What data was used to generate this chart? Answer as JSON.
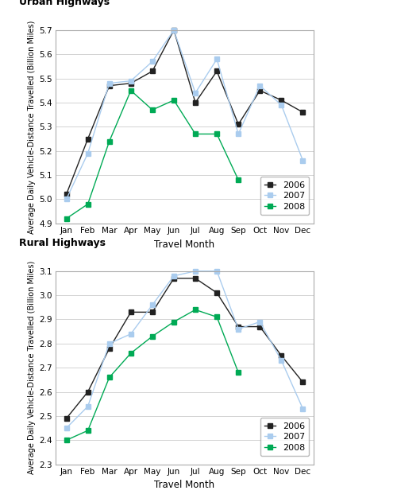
{
  "months": [
    "Jan",
    "Feb",
    "Mar",
    "Apr",
    "May",
    "Jun",
    "Jul",
    "Aug",
    "Sep",
    "Oct",
    "Nov",
    "Dec"
  ],
  "urban": {
    "2006": [
      5.02,
      5.25,
      5.47,
      5.48,
      5.53,
      5.7,
      5.4,
      5.53,
      5.31,
      5.45,
      5.41,
      5.36
    ],
    "2007": [
      5.0,
      5.19,
      5.48,
      5.49,
      5.57,
      5.7,
      5.44,
      5.58,
      5.27,
      5.47,
      5.39,
      5.16
    ],
    "2008": [
      4.92,
      4.98,
      5.24,
      5.45,
      5.37,
      5.41,
      5.27,
      5.27,
      5.08,
      null,
      null,
      null
    ]
  },
  "rural": {
    "2006": [
      2.49,
      2.6,
      2.78,
      2.93,
      2.93,
      3.07,
      3.07,
      3.01,
      2.87,
      2.87,
      2.75,
      2.64
    ],
    "2007": [
      2.45,
      2.54,
      2.8,
      2.84,
      2.96,
      3.08,
      3.1,
      3.1,
      2.86,
      2.89,
      2.73,
      2.53
    ],
    "2008": [
      2.4,
      2.44,
      2.66,
      2.76,
      2.83,
      2.89,
      2.94,
      2.91,
      2.68,
      null,
      null,
      null
    ]
  },
  "urban_ylim": [
    4.9,
    5.7
  ],
  "urban_yticks": [
    4.9,
    5.0,
    5.1,
    5.2,
    5.3,
    5.4,
    5.5,
    5.6,
    5.7
  ],
  "rural_ylim": [
    2.3,
    3.1
  ],
  "rural_yticks": [
    2.3,
    2.4,
    2.5,
    2.6,
    2.7,
    2.8,
    2.9,
    3.0,
    3.1
  ],
  "color_2006": "#222222",
  "color_2007": "#aaccee",
  "color_2008": "#00aa55",
  "ylabel": "Average Daily Vehicle-Distance Travelled (Billion Miles)",
  "xlabel": "Travel Month",
  "urban_title": "Urban Highways",
  "rural_title": "Rural Highways"
}
